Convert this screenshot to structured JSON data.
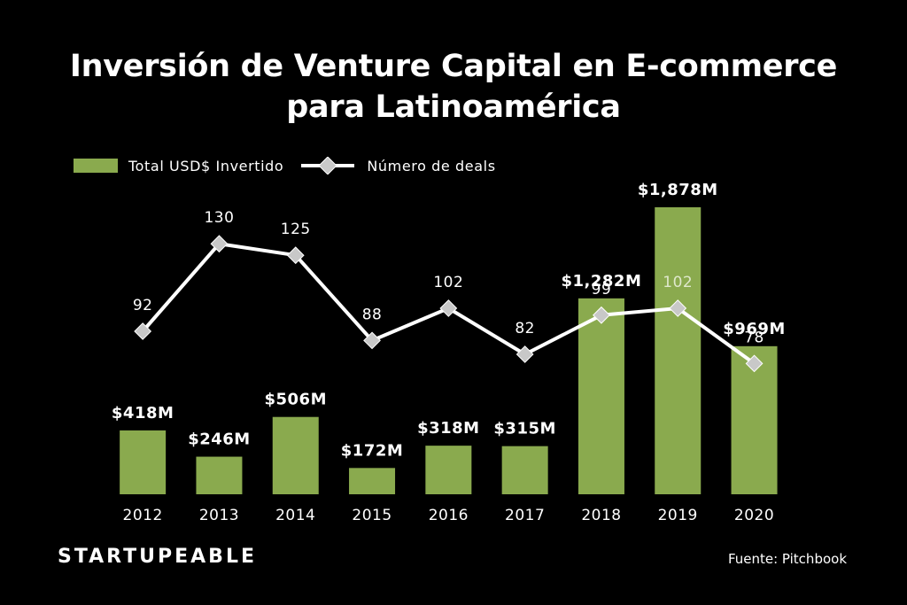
{
  "title_line1": "Inversión de Venture Capital en E-commerce",
  "title_line2": "para Latinoamérica",
  "brand": "STARTUPEABLE",
  "source": "Fuente: Pitchbook",
  "colors": {
    "bar": "#8aaa4e",
    "line": "#ffffff",
    "marker": "#c8c8c8",
    "background": "#000000"
  },
  "chart_data": {
    "type": "bar",
    "categories": [
      "2012",
      "2013",
      "2014",
      "2015",
      "2016",
      "2017",
      "2018",
      "2019",
      "2020"
    ],
    "title": "Inversión de Venture Capital en E-commerce para Latinoamérica",
    "legend": "top-left",
    "grid": false,
    "series": [
      {
        "name": "Total USD$ Invertido",
        "type": "bar",
        "values": [
          418,
          246,
          506,
          172,
          318,
          315,
          1282,
          1878,
          969
        ],
        "labels": [
          "$418M",
          "$246M",
          "$506M",
          "$172M",
          "$318M",
          "$315M",
          "$1,282M",
          "$1,878M",
          "$969M"
        ]
      },
      {
        "name": "Número de deals",
        "type": "line",
        "values": [
          92,
          130,
          125,
          88,
          102,
          82,
          99,
          102,
          78
        ],
        "labels": [
          "92",
          "130",
          "125",
          "88",
          "102",
          "82",
          "99",
          "102",
          "78"
        ]
      }
    ]
  }
}
